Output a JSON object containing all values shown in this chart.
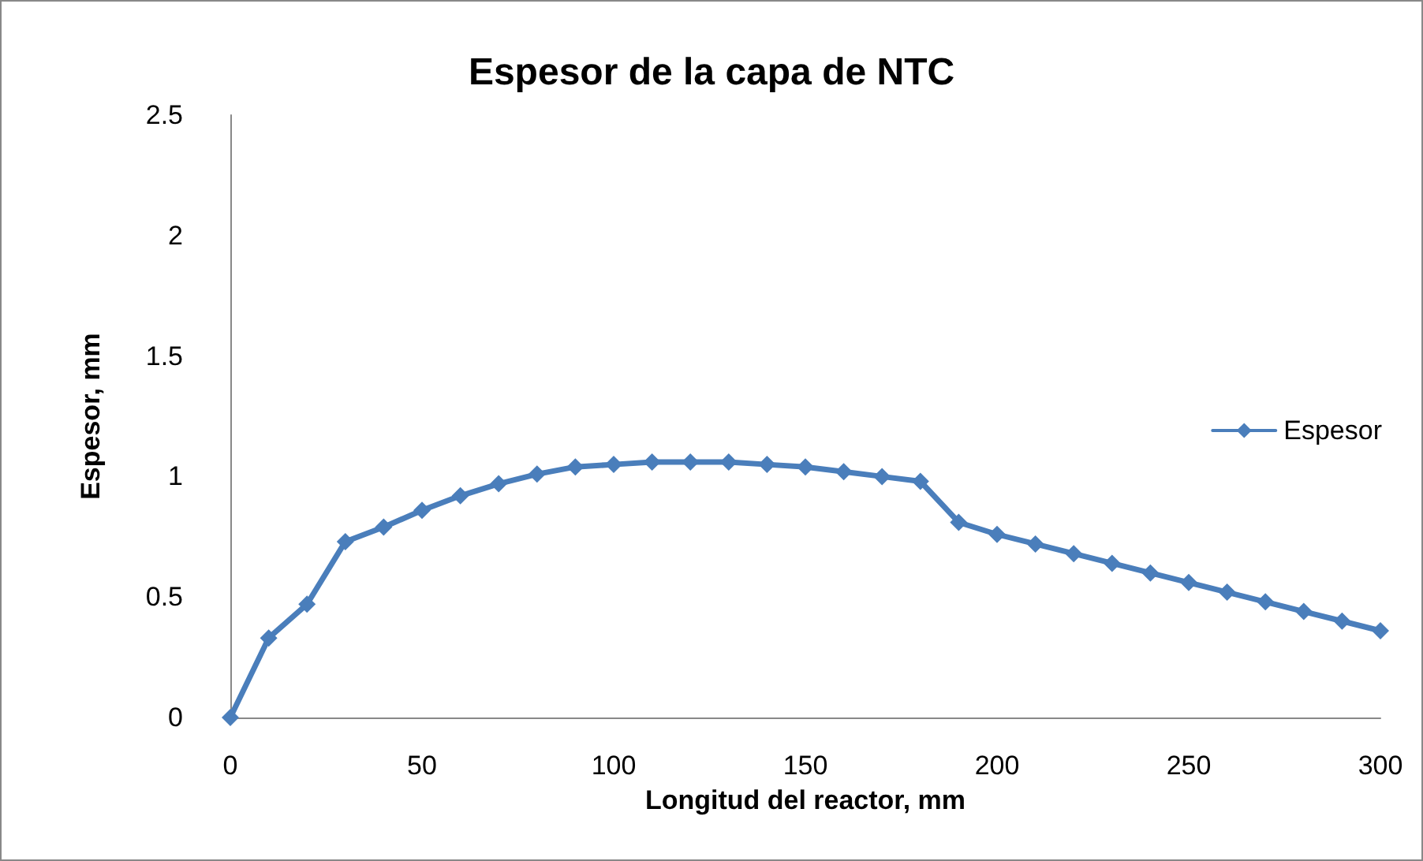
{
  "chart_data": {
    "type": "line",
    "title": "Espesor de la capa de NTC",
    "xlabel": "Longitud del reactor, mm",
    "ylabel": "Espesor, mm",
    "x": [
      0,
      10,
      20,
      30,
      40,
      50,
      60,
      70,
      80,
      90,
      100,
      110,
      120,
      130,
      140,
      150,
      160,
      170,
      180,
      190,
      200,
      210,
      220,
      230,
      240,
      250,
      260,
      270,
      280,
      290,
      300
    ],
    "series": [
      {
        "name": "Espesor",
        "color": "#4a7ebb",
        "values": [
          0,
          0.33,
          0.47,
          0.73,
          0.79,
          0.86,
          0.92,
          0.97,
          1.01,
          1.04,
          1.05,
          1.06,
          1.06,
          1.06,
          1.05,
          1.04,
          1.02,
          1.0,
          0.98,
          0.81,
          0.76,
          0.72,
          0.68,
          0.64,
          0.6,
          0.56,
          0.52,
          0.48,
          0.44,
          0.4,
          0.36
        ]
      }
    ],
    "xlim": [
      0,
      300
    ],
    "xticks": [
      0,
      50,
      100,
      150,
      200,
      250,
      300
    ],
    "ylim": [
      0,
      2.5
    ],
    "yticks": [
      0,
      0.5,
      1,
      1.5,
      2,
      2.5
    ],
    "grid": false,
    "legend": "right",
    "marker": "diamond",
    "line_style": "solid"
  }
}
